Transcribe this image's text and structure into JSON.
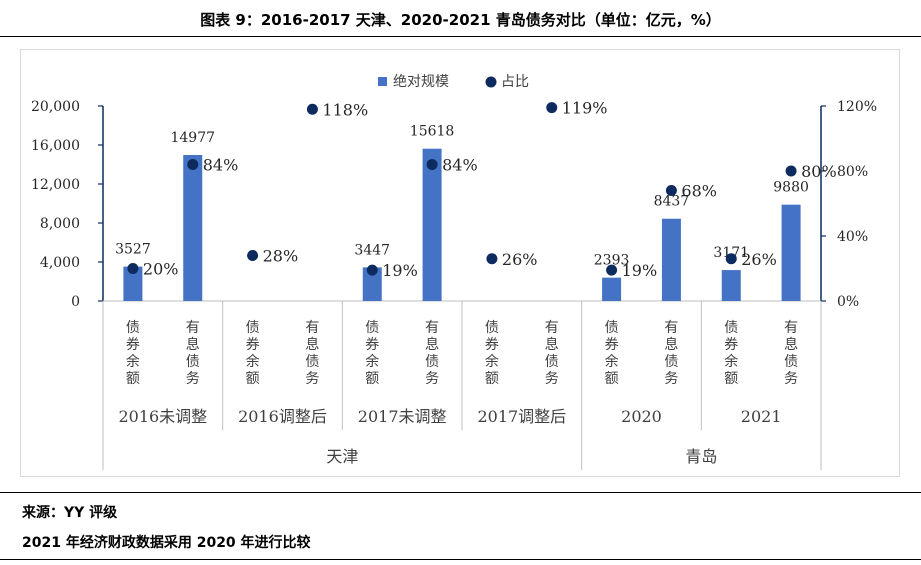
{
  "title": "图表 9：2016-2017 天津、2020-2021 青岛债务对比（单位：亿元，%）",
  "footer": {
    "source": "来源：YY 评级",
    "note": "2021 年经济财政数据采用 2020 年进行比较"
  },
  "colors": {
    "bar": "#4472C4",
    "dot": "#0D2B5E",
    "axis": "#0D2B5E"
  },
  "chart_data": {
    "type": "bar",
    "legend": {
      "position": "top",
      "items": [
        "绝对规模",
        "占比"
      ]
    },
    "left_axis": {
      "ylim": [
        0,
        20000
      ],
      "ticks": [
        "0",
        "4,000",
        "8,000",
        "12,000",
        "16,000",
        "20,000"
      ]
    },
    "right_axis": {
      "ylim": [
        0,
        120
      ],
      "ticks": [
        "0%",
        "40%",
        "80%",
        "120%"
      ]
    },
    "groups": [
      {
        "region": "天津",
        "periods": [
          "2016未调整",
          "2016调整后",
          "2017未调整",
          "2017调整后"
        ]
      },
      {
        "region": "青岛",
        "periods": [
          "2020",
          "2021"
        ]
      }
    ],
    "categories": [
      {
        "region": "天津",
        "period": "2016未调整",
        "label": "债券余额"
      },
      {
        "region": "天津",
        "period": "2016未调整",
        "label": "有息债务"
      },
      {
        "region": "天津",
        "period": "2016调整后",
        "label": "债券余额"
      },
      {
        "region": "天津",
        "period": "2016调整后",
        "label": "有息债务"
      },
      {
        "region": "天津",
        "period": "2017未调整",
        "label": "债券余额"
      },
      {
        "region": "天津",
        "period": "2017未调整",
        "label": "有息债务"
      },
      {
        "region": "天津",
        "period": "2017调整后",
        "label": "债券余额"
      },
      {
        "region": "天津",
        "period": "2017调整后",
        "label": "有息债务"
      },
      {
        "region": "青岛",
        "period": "2020",
        "label": "债券余额"
      },
      {
        "region": "青岛",
        "period": "2020",
        "label": "有息债务"
      },
      {
        "region": "青岛",
        "period": "2021",
        "label": "债券余额"
      },
      {
        "region": "青岛",
        "period": "2021",
        "label": "有息债务"
      }
    ],
    "series": [
      {
        "name": "绝对规模",
        "axis": "left",
        "kind": "bar",
        "values": [
          3527,
          14977,
          null,
          null,
          3447,
          15618,
          null,
          null,
          2393,
          8437,
          3171,
          9880
        ],
        "labels": [
          "3527",
          "14977",
          "",
          "",
          "3447",
          "15618",
          "",
          "",
          "2393",
          "8437",
          "3171",
          "9880"
        ]
      },
      {
        "name": "占比",
        "axis": "right",
        "kind": "scatter",
        "values": [
          20,
          84,
          28,
          118,
          19,
          84,
          26,
          119,
          19,
          68,
          26,
          80
        ],
        "labels": [
          "20%",
          "84%",
          "28%",
          "118%",
          "19%",
          "84%",
          "26%",
          "119%",
          "19%",
          "68%",
          "26%",
          "80%"
        ]
      }
    ]
  }
}
